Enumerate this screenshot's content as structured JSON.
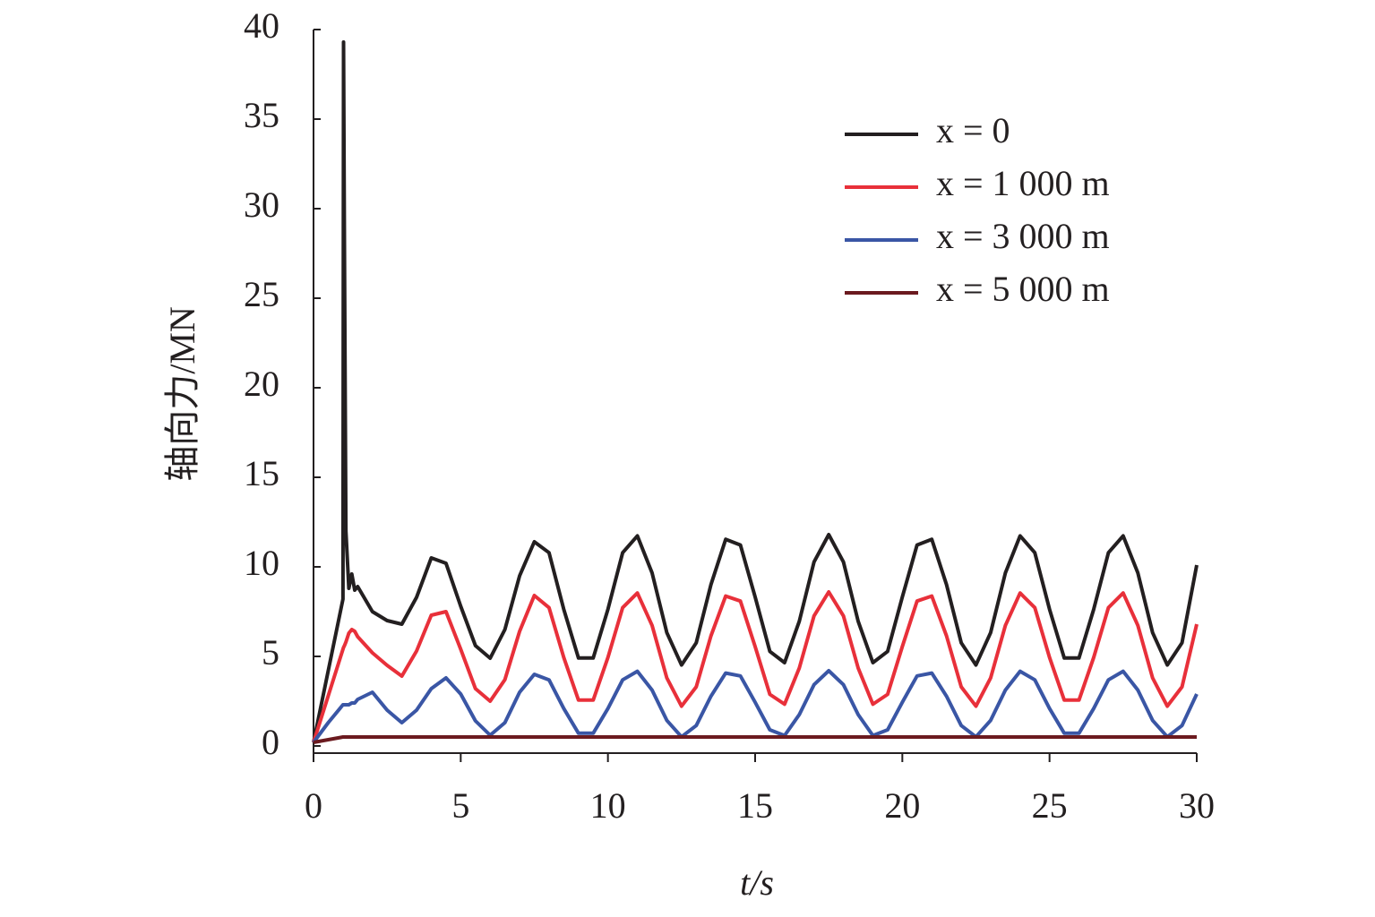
{
  "chart_data": {
    "type": "line",
    "xlabel": "t/s",
    "ylabel": "轴向力/MN",
    "xlim": [
      0,
      30
    ],
    "ylim": [
      0,
      40
    ],
    "xticks": [
      0,
      5,
      10,
      15,
      20,
      25,
      30
    ],
    "yticks": [
      0,
      5,
      10,
      15,
      20,
      25,
      30,
      35,
      40
    ],
    "grid": false,
    "legend": "upper right",
    "x": [
      0,
      0.5,
      1,
      1.02,
      1.05,
      1.1,
      1.2,
      1.3,
      1.4,
      1.5,
      2,
      2.5,
      3,
      3.5,
      4,
      4.5,
      5,
      5.5,
      6,
      6.5,
      7,
      7.5,
      8,
      8.5,
      9,
      9.5,
      10,
      10.5,
      11,
      11.5,
      12,
      12.5,
      13,
      13.5,
      14,
      14.5,
      15,
      15.5,
      16,
      16.5,
      17,
      17.5,
      18,
      18.5,
      19,
      19.5,
      20,
      20.5,
      21,
      21.5,
      22,
      22.5,
      23,
      23.5,
      24,
      24.5,
      25,
      25.5,
      26,
      26.5,
      27,
      27.5,
      28,
      28.5,
      29,
      29.5,
      30
    ],
    "series": [
      {
        "name": "x = 0",
        "color": "#231f20",
        "values": [
          0.2,
          4.2,
          8.2,
          39.3,
          28,
          12,
          8.8,
          9.6,
          8.7,
          8.9,
          7.5,
          7.0,
          6.8,
          8.3,
          10.5,
          10.2,
          7.8,
          5.6,
          4.9,
          6.5,
          9.5,
          11.4,
          10.79,
          7.63,
          4.91,
          4.91,
          7.63,
          10.79,
          11.73,
          9.66,
          6.33,
          4.52,
          5.76,
          9.01,
          11.54,
          11.22,
          8.32,
          5.28,
          4.65,
          6.96,
          10.27,
          11.8,
          10.27,
          6.96,
          4.65,
          5.28,
          8.32,
          11.22,
          11.54,
          9.01,
          5.76,
          4.52,
          6.33,
          9.66,
          11.73,
          10.79,
          7.63,
          4.91,
          4.91,
          7.63,
          10.79,
          11.73,
          9.66,
          6.33,
          4.52,
          5.76,
          10.1
        ]
      },
      {
        "name": "x = 1 000 m",
        "color": "#e8303a",
        "values": [
          0.2,
          2.8,
          5.4,
          5.5,
          5.6,
          5.8,
          6.3,
          6.5,
          6.4,
          6.1,
          5.2,
          4.5,
          3.9,
          5.3,
          7.3,
          7.5,
          5.4,
          3.2,
          2.5,
          3.7,
          6.4,
          8.4,
          7.72,
          4.94,
          2.56,
          2.56,
          4.94,
          7.72,
          8.54,
          6.73,
          3.8,
          2.22,
          3.3,
          6.15,
          8.37,
          8.09,
          5.55,
          2.88,
          2.33,
          4.35,
          7.26,
          8.6,
          7.26,
          4.35,
          2.33,
          2.88,
          5.55,
          8.09,
          8.37,
          6.15,
          3.3,
          2.22,
          3.8,
          6.73,
          8.54,
          7.72,
          4.94,
          2.56,
          2.56,
          4.94,
          7.72,
          8.54,
          6.73,
          3.8,
          2.22,
          3.3,
          6.8
        ]
      },
      {
        "name": "x = 3 000 m",
        "color": "#3a56a5",
        "values": [
          0.2,
          1.3,
          2.3,
          2.3,
          2.3,
          2.3,
          2.3,
          2.4,
          2.4,
          2.6,
          3.0,
          2.0,
          1.3,
          2.0,
          3.2,
          3.8,
          2.9,
          1.4,
          0.6,
          1.3,
          3.0,
          4.0,
          3.69,
          2.09,
          0.71,
          0.71,
          2.09,
          3.69,
          4.17,
          3.12,
          1.43,
          0.51,
          1.14,
          2.78,
          4.07,
          3.91,
          2.44,
          0.9,
          0.58,
          1.75,
          3.42,
          4.2,
          3.42,
          1.75,
          0.58,
          0.9,
          2.44,
          3.91,
          4.07,
          2.78,
          1.14,
          0.51,
          1.43,
          3.12,
          4.17,
          3.69,
          2.09,
          0.71,
          0.71,
          2.09,
          3.69,
          4.17,
          3.12,
          1.43,
          0.51,
          1.14,
          2.9
        ]
      },
      {
        "name": "x = 5 000 m",
        "color": "#6b1a1f",
        "values": [
          0.2,
          0.35,
          0.5,
          0.5,
          0.5,
          0.5,
          0.5,
          0.5,
          0.5,
          0.5,
          0.5,
          0.5,
          0.5,
          0.5,
          0.5,
          0.5,
          0.5,
          0.5,
          0.5,
          0.5,
          0.5,
          0.5,
          0.5,
          0.5,
          0.5,
          0.5,
          0.5,
          0.5,
          0.5,
          0.5,
          0.5,
          0.5,
          0.5,
          0.5,
          0.5,
          0.5,
          0.5,
          0.5,
          0.5,
          0.5,
          0.5,
          0.5,
          0.5,
          0.5,
          0.5,
          0.5,
          0.5,
          0.5,
          0.5,
          0.5,
          0.5,
          0.5,
          0.5,
          0.5,
          0.5,
          0.5,
          0.5,
          0.5,
          0.5,
          0.5,
          0.5,
          0.5,
          0.5,
          0.5,
          0.5,
          0.5,
          0.5
        ]
      }
    ]
  }
}
